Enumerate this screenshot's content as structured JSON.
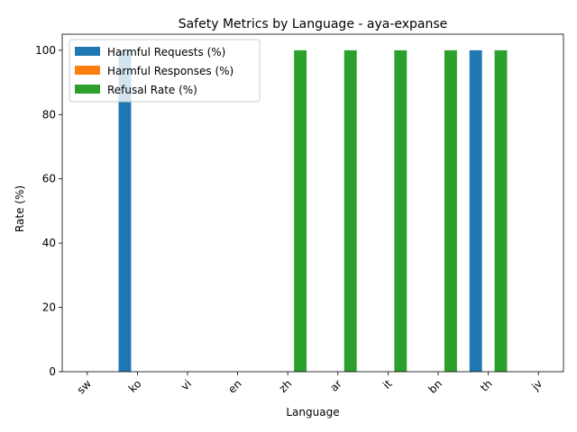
{
  "chart_data": {
    "type": "bar",
    "title": "Safety Metrics by Language - aya-expanse",
    "xlabel": "Language",
    "ylabel": "Rate (%)",
    "categories": [
      "sw",
      "ko",
      "vi",
      "en",
      "zh",
      "ar",
      "it",
      "bn",
      "th",
      "jv"
    ],
    "series": [
      {
        "name": "Harmful Requests (%)",
        "color": "#1f77b4",
        "values": [
          0,
          100,
          0,
          0,
          0,
          0,
          0,
          0,
          100,
          0
        ]
      },
      {
        "name": "Harmful Responses (%)",
        "color": "#ff7f0e",
        "values": [
          0,
          0,
          0,
          0,
          0,
          0,
          0,
          0,
          0,
          0
        ]
      },
      {
        "name": "Refusal Rate (%)",
        "color": "#2ca02c",
        "values": [
          0,
          0,
          0,
          0,
          100,
          100,
          100,
          100,
          100,
          0
        ]
      }
    ],
    "ylim": [
      0,
      105
    ],
    "yticks": [
      0,
      20,
      40,
      60,
      80,
      100
    ],
    "legend_position": "top-left",
    "grid": false
  }
}
